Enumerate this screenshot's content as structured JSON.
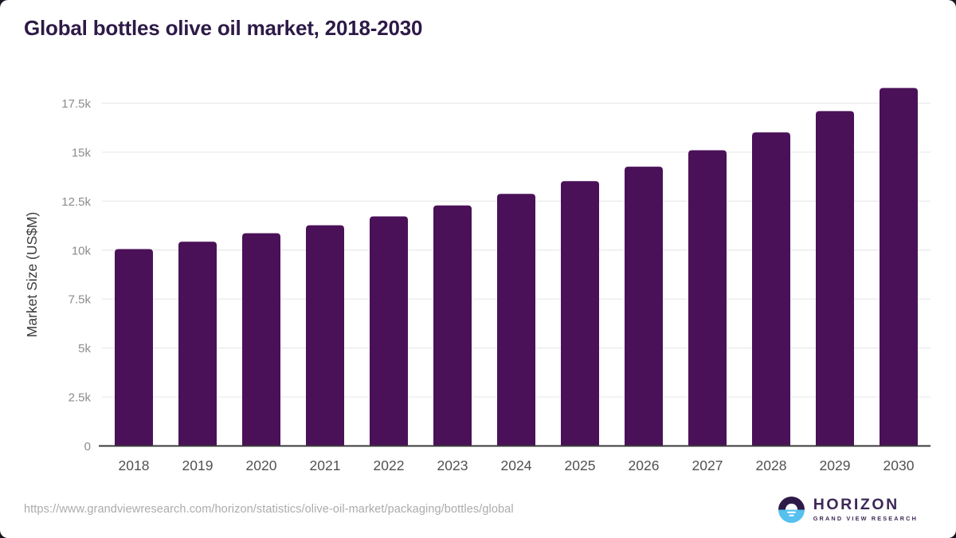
{
  "chart_data": {
    "type": "bar",
    "title": "Global bottles olive oil market, 2018-2030",
    "xlabel": "",
    "ylabel": "Market Size (US$M)",
    "categories": [
      "2018",
      "2019",
      "2020",
      "2021",
      "2022",
      "2023",
      "2024",
      "2025",
      "2026",
      "2027",
      "2028",
      "2029",
      "2030"
    ],
    "values": [
      10050,
      10430,
      10860,
      11270,
      11720,
      12280,
      12870,
      13520,
      14260,
      15100,
      16010,
      17100,
      18280
    ],
    "ylim": [
      0,
      18500
    ],
    "yticks": [
      {
        "value": 0,
        "label": "0"
      },
      {
        "value": 2500,
        "label": "2.5k"
      },
      {
        "value": 5000,
        "label": "5k"
      },
      {
        "value": 7500,
        "label": "7.5k"
      },
      {
        "value": 10000,
        "label": "10k"
      },
      {
        "value": 12500,
        "label": "12.5k"
      },
      {
        "value": 15000,
        "label": "15k"
      },
      {
        "value": 17500,
        "label": "17.5k"
      }
    ],
    "grid": "horizontal",
    "legend": "none",
    "bar_color": "#4a1158"
  },
  "footer": {
    "source_url": "https://www.grandviewresearch.com/horizon/statistics/olive-oil-market/packaging/bottles/global",
    "logo": {
      "name": "HORIZON",
      "subtitle": "GRAND VIEW RESEARCH"
    }
  },
  "colors": {
    "title_text": "#2d1a47",
    "bar": "#4a1158",
    "grid_line": "#e9e9e9",
    "axis_line": "#3a3a3a",
    "y_tick_text": "#8c8c8c",
    "x_tick_text": "#515151",
    "y_axis_title_text": "#3d3d3d",
    "url_text": "#ababab",
    "logo_text_purple": "#3d2857",
    "logo_circle_dark": "#2e1a47",
    "logo_circle_blue": "#56c0ee"
  }
}
